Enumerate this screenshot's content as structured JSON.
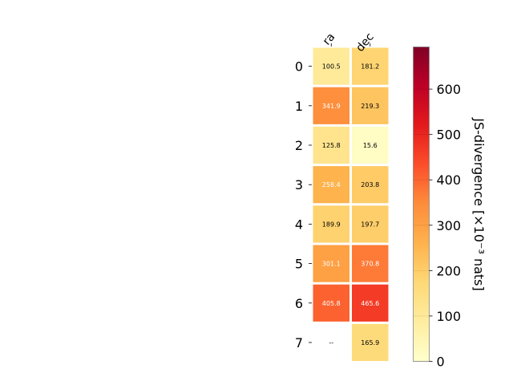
{
  "chart_data": {
    "type": "heatmap",
    "columns": [
      "ra",
      "dec"
    ],
    "rows": [
      "0",
      "1",
      "2",
      "3",
      "4",
      "5",
      "6",
      "7"
    ],
    "values": [
      [
        100.5,
        181.2
      ],
      [
        341.9,
        219.3
      ],
      [
        125.8,
        15.6
      ],
      [
        258.4,
        203.8
      ],
      [
        189.9,
        197.7
      ],
      [
        301.1,
        370.8
      ],
      [
        405.8,
        465.6
      ],
      [
        null,
        165.9
      ]
    ],
    "cell_labels": [
      [
        "100.5",
        "181.2"
      ],
      [
        "341.9",
        "219.3"
      ],
      [
        "125.8",
        "15.6"
      ],
      [
        "258.4",
        "203.8"
      ],
      [
        "189.9",
        "197.7"
      ],
      [
        "301.1",
        "370.8"
      ],
      [
        "405.8",
        "465.6"
      ],
      [
        "--",
        "165.9"
      ]
    ],
    "colorbar": {
      "label": "JS-divergence [×10⁻³ nats]",
      "range": [
        0,
        693
      ],
      "ticks": [
        0,
        100,
        200,
        300,
        400,
        500,
        600
      ],
      "colormap": "YlOrRd",
      "colormap_stops": [
        "#ffffcc",
        "#ffeda0",
        "#fed976",
        "#feb24c",
        "#fd8d3c",
        "#fc4e2a",
        "#e31a1c",
        "#bd0026",
        "#800026"
      ]
    }
  }
}
